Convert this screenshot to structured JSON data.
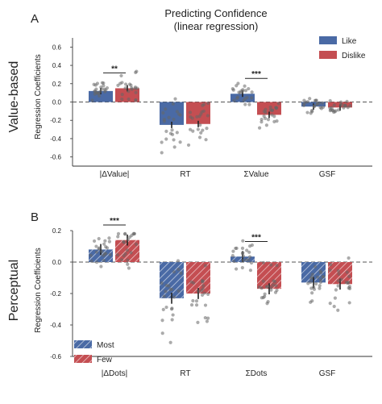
{
  "figure": {
    "title_line1": "Predicting Confidence",
    "title_line2": "(linear regression)"
  },
  "chart_data": [
    {
      "type": "bar",
      "panel_label": "A",
      "side_label": "Value-based",
      "ylabel": "Regression Coefficients",
      "ylim": [
        -0.7,
        0.7
      ],
      "yticks": [
        "0.6",
        "0.4",
        "0.2",
        "0.0",
        "-0.2",
        "-0.4",
        "-0.6"
      ],
      "ytick_values": [
        0.6,
        0.4,
        0.2,
        0.0,
        -0.2,
        -0.4,
        -0.6
      ],
      "categories": [
        "|ΔValue|",
        "RT",
        "ΣValue",
        "GSF"
      ],
      "hatched": false,
      "legend_position": "top-right",
      "series": [
        {
          "name": "Like",
          "color": "#4a6aa5",
          "values": [
            0.12,
            -0.25,
            0.09,
            -0.05
          ]
        },
        {
          "name": "Dislike",
          "color": "#c44e52",
          "values": [
            0.15,
            -0.24,
            -0.14,
            -0.06
          ]
        }
      ],
      "significance": [
        {
          "category_index": 0,
          "label": "**"
        },
        {
          "category_index": 2,
          "label": "***"
        }
      ]
    },
    {
      "type": "bar",
      "panel_label": "B",
      "side_label": "Perceptual",
      "ylabel": "Regression Coefficients",
      "ylim": [
        -0.6,
        0.2
      ],
      "yticks": [
        "0.2",
        "0.0",
        "-0.2",
        "-0.4",
        "-0.6"
      ],
      "ytick_values": [
        0.2,
        0.0,
        -0.2,
        -0.4,
        -0.6
      ],
      "categories": [
        "|ΔDots|",
        "RT",
        "ΣDots",
        "GSF"
      ],
      "hatched": true,
      "legend_position": "bottom-left",
      "series": [
        {
          "name": "Most",
          "color": "#4a6aa5",
          "values": [
            0.08,
            -0.23,
            0.035,
            -0.13
          ]
        },
        {
          "name": "Few",
          "color": "#c44e52",
          "values": [
            0.14,
            -0.2,
            -0.17,
            -0.14
          ]
        }
      ],
      "significance": [
        {
          "category_index": 0,
          "label": "***"
        },
        {
          "category_index": 2,
          "label": "***"
        }
      ]
    }
  ]
}
